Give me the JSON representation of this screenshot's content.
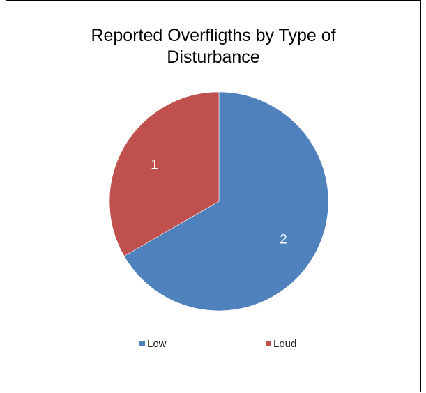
{
  "chart_data": {
    "type": "pie",
    "title_lines": [
      "Reported Overfligths by Type of",
      "Disturbance"
    ],
    "categories": [
      "Low",
      "Loud"
    ],
    "values": [
      2,
      1
    ],
    "data_labels": [
      "2",
      "1"
    ],
    "colors": [
      "#4F81BD",
      "#C0504D"
    ],
    "legend": {
      "position": "bottom",
      "entries": [
        "Low",
        "Loud"
      ]
    }
  }
}
